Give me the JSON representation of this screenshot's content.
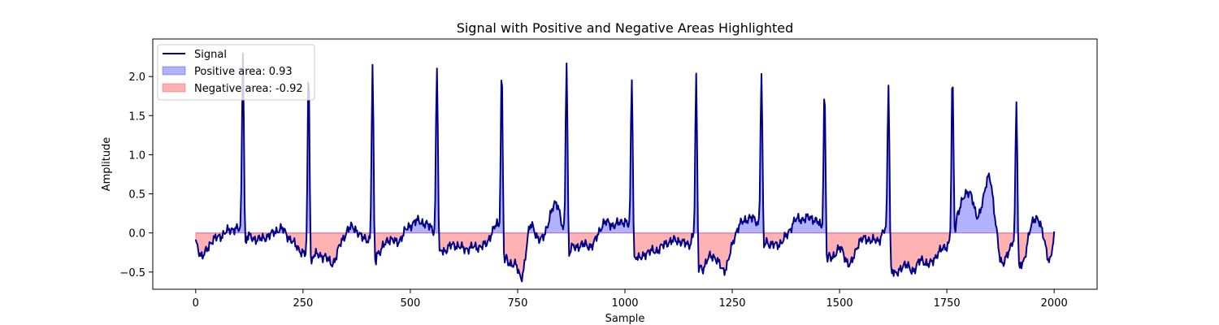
{
  "chart_data": {
    "type": "area",
    "title": "Signal with Positive and Negative Areas Highlighted",
    "xlabel": "Sample",
    "ylabel": "Amplitude",
    "xlim": [
      -100,
      2100
    ],
    "ylim": [
      -0.72,
      2.48
    ],
    "xticks": [
      0,
      250,
      500,
      750,
      1000,
      1250,
      1500,
      1750,
      2000
    ],
    "yticks": [
      -0.5,
      0.0,
      0.5,
      1.0,
      1.5,
      2.0
    ],
    "grid": false,
    "legend_position": "upper-left",
    "series": [
      {
        "name": "Signal",
        "kind": "line",
        "color": "#00008b"
      },
      {
        "name": "Positive area: 0.93",
        "kind": "fill",
        "color": "#0000ff",
        "alpha": 0.3
      },
      {
        "name": "Negative area: -0.92",
        "kind": "fill",
        "color": "#ff0000",
        "alpha": 0.3
      }
    ],
    "signal": {
      "x_start": 0,
      "x_end": 2000,
      "beat_peaks": [
        {
          "x": 110,
          "y": 2.32
        },
        {
          "x": 263,
          "y": 2.12
        },
        {
          "x": 412,
          "y": 2.13
        },
        {
          "x": 562,
          "y": 2.14
        },
        {
          "x": 713,
          "y": 2.12
        },
        {
          "x": 864,
          "y": 2.22
        },
        {
          "x": 1016,
          "y": 2.01
        },
        {
          "x": 1166,
          "y": 1.97
        },
        {
          "x": 1318,
          "y": 2.04
        },
        {
          "x": 1465,
          "y": 1.85
        },
        {
          "x": 1614,
          "y": 1.9
        },
        {
          "x": 1763,
          "y": 2.01
        },
        {
          "x": 1912,
          "y": 1.69
        }
      ],
      "baseline_points": [
        [
          0,
          -0.12
        ],
        [
          15,
          -0.3
        ],
        [
          35,
          -0.12
        ],
        [
          60,
          -0.03
        ],
        [
          85,
          0.05
        ],
        [
          100,
          0.04
        ],
        [
          125,
          -0.05
        ],
        [
          150,
          -0.08
        ],
        [
          175,
          -0.02
        ],
        [
          200,
          0.05
        ],
        [
          220,
          -0.08
        ],
        [
          240,
          -0.2
        ],
        [
          255,
          -0.28
        ],
        [
          275,
          -0.28
        ],
        [
          300,
          -0.3
        ],
        [
          320,
          -0.38
        ],
        [
          340,
          -0.1
        ],
        [
          365,
          0.08
        ],
        [
          385,
          -0.05
        ],
        [
          400,
          -0.08
        ],
        [
          425,
          -0.25
        ],
        [
          450,
          -0.08
        ],
        [
          470,
          -0.12
        ],
        [
          490,
          0.04
        ],
        [
          515,
          0.15
        ],
        [
          540,
          0.1
        ],
        [
          555,
          0.02
        ],
        [
          575,
          -0.22
        ],
        [
          600,
          -0.15
        ],
        [
          625,
          -0.2
        ],
        [
          650,
          -0.18
        ],
        [
          675,
          -0.15
        ],
        [
          695,
          0.05
        ],
        [
          705,
          0.08
        ],
        [
          725,
          -0.35
        ],
        [
          745,
          -0.4
        ],
        [
          760,
          -0.55
        ],
        [
          780,
          0.1
        ],
        [
          800,
          -0.1
        ],
        [
          820,
          0.1
        ],
        [
          840,
          0.4
        ],
        [
          855,
          0.05
        ],
        [
          875,
          -0.18
        ],
        [
          900,
          -0.15
        ],
        [
          925,
          -0.15
        ],
        [
          950,
          0.12
        ],
        [
          975,
          0.1
        ],
        [
          1000,
          0.15
        ],
        [
          1010,
          0.05
        ],
        [
          1030,
          -0.32
        ],
        [
          1050,
          -0.25
        ],
        [
          1075,
          -0.22
        ],
        [
          1100,
          -0.12
        ],
        [
          1125,
          -0.1
        ],
        [
          1150,
          -0.15
        ],
        [
          1160,
          -0.05
        ],
        [
          1180,
          -0.45
        ],
        [
          1200,
          -0.28
        ],
        [
          1220,
          -0.4
        ],
        [
          1235,
          -0.45
        ],
        [
          1255,
          -0.05
        ],
        [
          1275,
          0.15
        ],
        [
          1300,
          0.18
        ],
        [
          1312,
          0.1
        ],
        [
          1332,
          -0.12
        ],
        [
          1355,
          -0.15
        ],
        [
          1375,
          -0.05
        ],
        [
          1395,
          0.15
        ],
        [
          1415,
          0.18
        ],
        [
          1440,
          0.18
        ],
        [
          1458,
          0.05
        ],
        [
          1478,
          -0.32
        ],
        [
          1500,
          -0.2
        ],
        [
          1525,
          -0.4
        ],
        [
          1545,
          -0.12
        ],
        [
          1565,
          -0.08
        ],
        [
          1590,
          -0.1
        ],
        [
          1608,
          0.02
        ],
        [
          1628,
          -0.52
        ],
        [
          1650,
          -0.4
        ],
        [
          1670,
          -0.48
        ],
        [
          1690,
          -0.35
        ],
        [
          1710,
          -0.4
        ],
        [
          1730,
          -0.25
        ],
        [
          1755,
          -0.12
        ],
        [
          1775,
          0.25
        ],
        [
          1790,
          0.45
        ],
        [
          1805,
          0.52
        ],
        [
          1820,
          0.2
        ],
        [
          1835,
          0.45
        ],
        [
          1850,
          0.72
        ],
        [
          1862,
          0.2
        ],
        [
          1875,
          -0.35
        ],
        [
          1895,
          -0.25
        ],
        [
          1905,
          -0.1
        ],
        [
          1925,
          -0.4
        ],
        [
          1945,
          0.05
        ],
        [
          1960,
          0.2
        ],
        [
          1975,
          -0.05
        ],
        [
          1990,
          -0.35
        ],
        [
          2000,
          -0.06
        ]
      ]
    }
  }
}
